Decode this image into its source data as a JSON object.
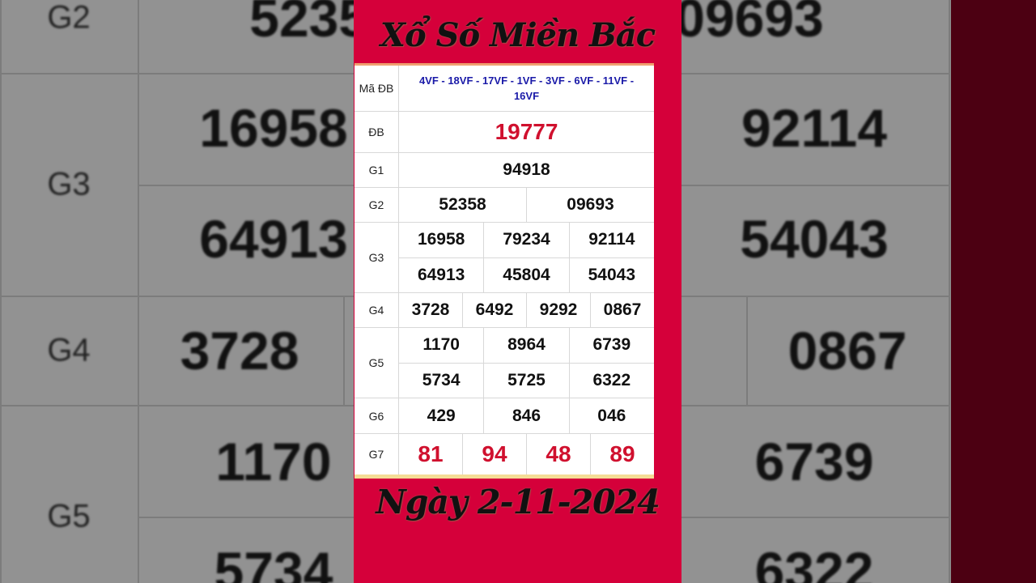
{
  "title": "Xổ Số Miền Bắc",
  "date": "Ngày 2-11-2024",
  "colors": {
    "panel": "#d5003a",
    "special": "#d0102e",
    "code": "#1a1aa8"
  },
  "rows": {
    "ma_db": {
      "label": "Mã ĐB",
      "value": "4VF - 18VF - 17VF - 1VF - 3VF - 6VF - 11VF - 16VF"
    },
    "db": {
      "label": "ĐB",
      "values": [
        "19777"
      ]
    },
    "g1": {
      "label": "G1",
      "values": [
        "94918"
      ]
    },
    "g2": {
      "label": "G2",
      "values": [
        "52358",
        "09693"
      ]
    },
    "g3": {
      "label": "G3",
      "values": [
        "16958",
        "79234",
        "92114",
        "64913",
        "45804",
        "54043"
      ]
    },
    "g4": {
      "label": "G4",
      "values": [
        "3728",
        "6492",
        "9292",
        "0867"
      ]
    },
    "g5": {
      "label": "G5",
      "values": [
        "1170",
        "8964",
        "6739",
        "5734",
        "5725",
        "6322"
      ]
    },
    "g6": {
      "label": "G6",
      "values": [
        "429",
        "846",
        "046"
      ]
    },
    "g7": {
      "label": "G7",
      "values": [
        "81",
        "94",
        "48",
        "89"
      ]
    }
  }
}
